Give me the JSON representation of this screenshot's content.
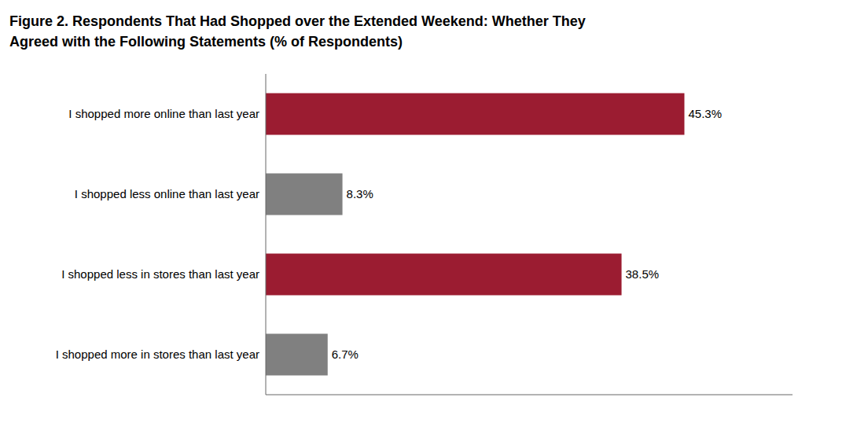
{
  "chart_data": {
    "type": "bar",
    "orientation": "horizontal",
    "title": "Figure 2. Respondents That Had Shopped over the Extended Weekend: Whether They\nAgreed with the Following Statements (% of Respondents)",
    "categories": [
      "I shopped more in stores than last year",
      "I shopped less in stores than last year",
      "I shopped less online than last year",
      "I shopped more online than last year"
    ],
    "values": [
      6.7,
      38.5,
      8.3,
      45.3
    ],
    "value_labels": [
      "6.7%",
      "38.5%",
      "8.3%",
      "45.3%"
    ],
    "data_labels": true,
    "colors": [
      "#808080",
      "#9B1C31",
      "#808080",
      "#9B1C31"
    ],
    "xlim": [
      0,
      57
    ],
    "tick_labels": "y",
    "grid": false
  }
}
